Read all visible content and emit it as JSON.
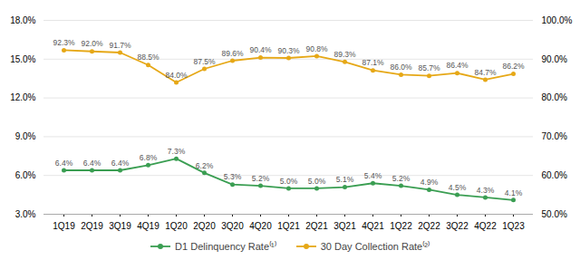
{
  "chart_data": {
    "type": "line",
    "categories": [
      "1Q19",
      "2Q19",
      "3Q19",
      "4Q19",
      "1Q20",
      "2Q20",
      "3Q20",
      "4Q20",
      "1Q21",
      "2Q21",
      "3Q21",
      "4Q21",
      "1Q22",
      "2Q22",
      "3Q22",
      "4Q22",
      "1Q23"
    ],
    "series": [
      {
        "name": "D1 Delinquency Rate⁽¹⁾",
        "color": "#3a9e52",
        "values": [
          6.4,
          6.4,
          6.4,
          6.8,
          7.3,
          6.2,
          5.3,
          5.2,
          5.0,
          5.0,
          5.1,
          5.4,
          5.2,
          4.9,
          4.5,
          4.3,
          4.1
        ],
        "value_labels": [
          "6.4%",
          "6.4%",
          "6.4%",
          "6.8%",
          "7.3%",
          "6.2%",
          "5.3%",
          "5.2%",
          "5.0%",
          "5.0%",
          "5.1%",
          "5.4%",
          "5.2%",
          "4.9%",
          "4.5%",
          "4.3%",
          "4.1%"
        ]
      },
      {
        "name": "30 Day Collection Rate⁽²⁾",
        "color": "#e6a817",
        "axis": "y2",
        "values": [
          92.3,
          92.0,
          91.7,
          88.5,
          84.0,
          87.5,
          89.6,
          90.4,
          90.3,
          90.8,
          89.3,
          87.1,
          86.0,
          85.7,
          86.4,
          84.7,
          86.2
        ],
        "value_labels": [
          "92.3%",
          "92.0%",
          "91.7%",
          "88.5%",
          "84.0%",
          "87.5%",
          "89.6%",
          "90.4%",
          "90.3%",
          "90.8%",
          "89.3%",
          "87.1%",
          "86.0%",
          "85.7%",
          "86.4%",
          "84.7%",
          "86.2%"
        ]
      }
    ],
    "ylim": [
      3.0,
      18.0
    ],
    "yticks": [
      {
        "value": 3.0,
        "label": "3.0%"
      },
      {
        "value": 6.0,
        "label": "6.0%"
      },
      {
        "value": 9.0,
        "label": "9.0%"
      },
      {
        "value": 12.0,
        "label": "12.0%"
      },
      {
        "value": 15.0,
        "label": "15.0%"
      },
      {
        "value": 18.0,
        "label": "18.0%"
      }
    ],
    "y2lim": [
      50.0,
      100.0
    ],
    "y2ticks": [
      {
        "value": 50.0,
        "label": "50.0%"
      },
      {
        "value": 60.0,
        "label": "60.0%"
      },
      {
        "value": 70.0,
        "label": "70.0%"
      },
      {
        "value": 80.0,
        "label": "80.0%"
      },
      {
        "value": 90.0,
        "label": "90.0%"
      },
      {
        "value": 100.0,
        "label": "100.0%"
      }
    ],
    "grid": true,
    "data_labels": true,
    "marker": "circle",
    "legend": "bottom"
  }
}
